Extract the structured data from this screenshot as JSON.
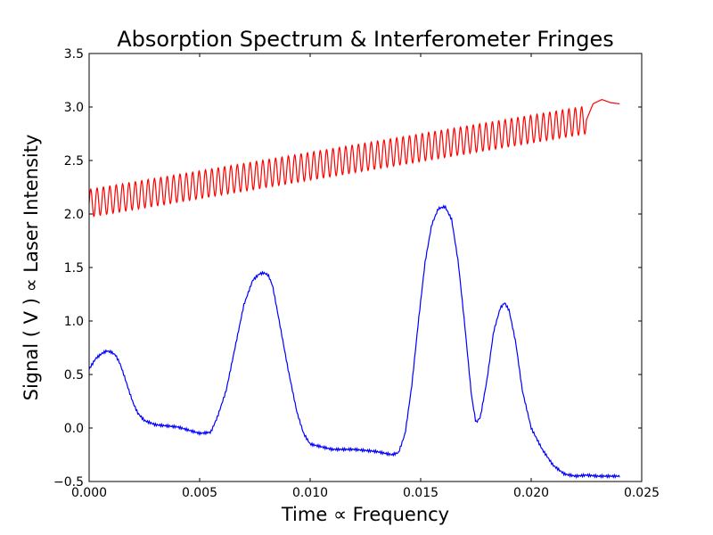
{
  "chart_data": {
    "type": "line",
    "title": "Absorption Spectrum & Interferometer Fringes",
    "xlabel": "Time ∝ Frequency",
    "ylabel": "Signal ( V ) ∝ Laser Intensity",
    "xlim": [
      0.0,
      0.025
    ],
    "ylim": [
      -0.5,
      3.5
    ],
    "xticks": [
      "0.000",
      "0.005",
      "0.010",
      "0.015",
      "0.020",
      "0.025"
    ],
    "yticks": [
      "−0.5",
      "0.0",
      "0.5",
      "1.0",
      "1.5",
      "2.0",
      "2.5",
      "3.0",
      "3.5"
    ],
    "grid": false,
    "legend": "none",
    "series": [
      {
        "color": "#ff0000",
        "description": "interferometer fringes: oscillation about a rising baseline",
        "x": [
          0.0,
          0.0225,
          0.0228,
          0.0232,
          0.0236,
          0.024
        ],
        "y": [
          2.1,
          2.88,
          3.03,
          3.07,
          3.04,
          3.03
        ],
        "fringe_amplitude": 0.13,
        "fringe_count": 78,
        "fringe_end_x": 0.0225
      },
      {
        "color": "#0000ff",
        "description": "absorption spectrum",
        "x": [
          0.0,
          0.0003,
          0.0006,
          0.0008,
          0.001,
          0.0012,
          0.0014,
          0.0016,
          0.0018,
          0.002,
          0.0022,
          0.0025,
          0.003,
          0.004,
          0.005,
          0.0055,
          0.0058,
          0.0062,
          0.0066,
          0.007,
          0.0074,
          0.0077,
          0.0079,
          0.0081,
          0.0083,
          0.0086,
          0.009,
          0.0094,
          0.0097,
          0.01,
          0.011,
          0.012,
          0.013,
          0.0137,
          0.014,
          0.0143,
          0.0146,
          0.0149,
          0.0152,
          0.0155,
          0.0158,
          0.0161,
          0.0164,
          0.0167,
          0.017,
          0.0173,
          0.0175,
          0.0177,
          0.018,
          0.0183,
          0.0186,
          0.0188,
          0.019,
          0.0193,
          0.0196,
          0.02,
          0.0205,
          0.021,
          0.0215,
          0.022,
          0.0225,
          0.023,
          0.0235,
          0.024
        ],
        "y": [
          0.55,
          0.65,
          0.7,
          0.72,
          0.71,
          0.68,
          0.6,
          0.48,
          0.35,
          0.23,
          0.14,
          0.07,
          0.03,
          0.01,
          -0.05,
          -0.04,
          0.1,
          0.35,
          0.75,
          1.15,
          1.38,
          1.44,
          1.45,
          1.43,
          1.33,
          1.0,
          0.55,
          0.15,
          -0.05,
          -0.15,
          -0.2,
          -0.2,
          -0.22,
          -0.25,
          -0.23,
          -0.05,
          0.4,
          1.0,
          1.55,
          1.9,
          2.05,
          2.07,
          1.95,
          1.55,
          0.95,
          0.3,
          0.05,
          0.1,
          0.45,
          0.9,
          1.12,
          1.17,
          1.1,
          0.8,
          0.35,
          0.0,
          -0.2,
          -0.35,
          -0.43,
          -0.45,
          -0.44,
          -0.45,
          -0.45,
          -0.45
        ]
      }
    ]
  }
}
